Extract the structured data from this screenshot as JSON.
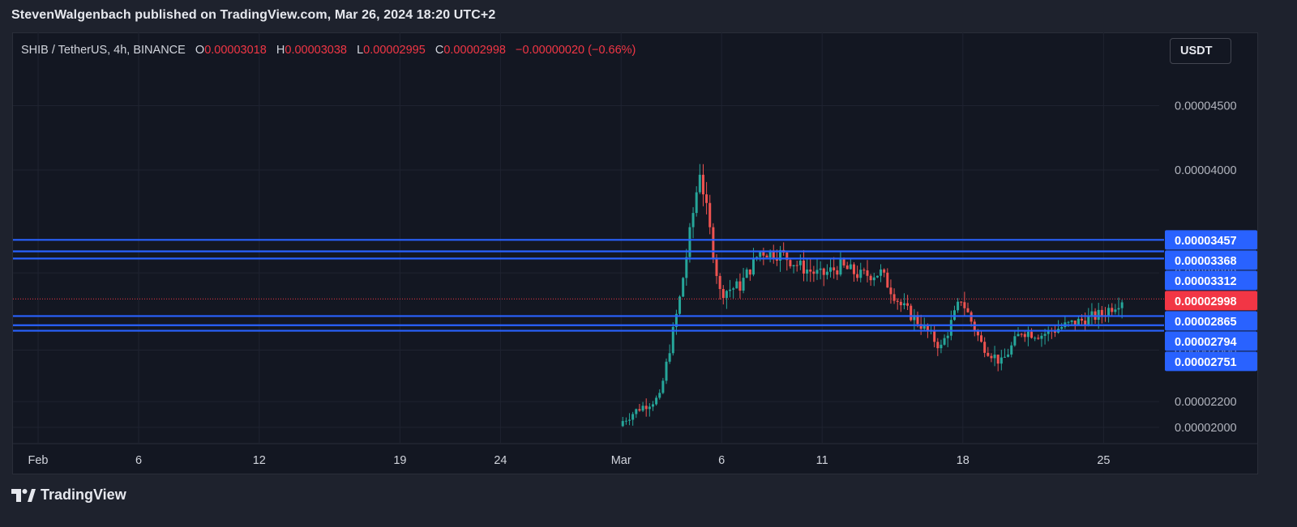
{
  "header": {
    "published_text": "StevenWalgenbach published on TradingView.com, Mar 26, 2024 18:20 UTC+2"
  },
  "legend": {
    "symbol": "SHIB / TetherUS, 4h, BINANCE",
    "open_label": "O",
    "open_value": "0.00003018",
    "high_label": "H",
    "high_value": "0.00003038",
    "low_label": "L",
    "low_value": "0.00002995",
    "close_label": "C",
    "close_value": "0.00002998",
    "change": "−0.00000020 (−0.66%)"
  },
  "currency_button": {
    "label": "USDT"
  },
  "footer": {
    "brand": "TradingView",
    "logo_icon": "tradingview-logo-icon"
  },
  "colors": {
    "up": "#26a69a",
    "down": "#ef5350",
    "level_line": "#2962ff",
    "level_badge": "#2962ff",
    "price_badge": "#f23645"
  },
  "chart_data": {
    "type": "candlestick",
    "interval": "4h",
    "ylim": [
      1.88e-05,
      4.755e-05
    ],
    "y_ticks": [
      "0.00002000",
      "0.00002200",
      "0.00002600",
      "0.00003200",
      "0.00004000",
      "0.00004500"
    ],
    "x_ticks": [
      {
        "label": "Feb",
        "date": "2024-02-01"
      },
      {
        "label": "6",
        "date": "2024-02-06"
      },
      {
        "label": "12",
        "date": "2024-02-12"
      },
      {
        "label": "19",
        "date": "2024-02-19"
      },
      {
        "label": "24",
        "date": "2024-02-24"
      },
      {
        "label": "Mar",
        "date": "2024-03-01"
      },
      {
        "label": "6",
        "date": "2024-03-06"
      },
      {
        "label": "11",
        "date": "2024-03-11"
      },
      {
        "label": "18",
        "date": "2024-03-18"
      },
      {
        "label": "25",
        "date": "2024-03-25"
      }
    ],
    "horizontal_levels": [
      "0.00003457",
      "0.00003368",
      "0.00003312",
      "0.00002865",
      "0.00002794",
      "0.00002751"
    ],
    "last_price": "0.00002998",
    "candles_close": [
      {
        "date": "2024-03-01",
        "close": 2.03e-05
      },
      {
        "date": "2024-03-02",
        "close": 2.15e-05
      },
      {
        "date": "2024-03-03",
        "close": 2.23e-05
      },
      {
        "date": "2024-03-04",
        "close": 3e-05
      },
      {
        "date": "2024-03-05",
        "close": 4e-05
      },
      {
        "date": "2024-03-06",
        "close": 3.05e-05
      },
      {
        "date": "2024-03-07",
        "close": 3.1e-05
      },
      {
        "date": "2024-03-08",
        "close": 3.37e-05
      },
      {
        "date": "2024-03-09",
        "close": 3.35e-05
      },
      {
        "date": "2024-03-10",
        "close": 3.25e-05
      },
      {
        "date": "2024-03-11",
        "close": 3.18e-05
      },
      {
        "date": "2024-03-12",
        "close": 3.25e-05
      },
      {
        "date": "2024-03-13",
        "close": 3.18e-05
      },
      {
        "date": "2024-03-14",
        "close": 3.2e-05
      },
      {
        "date": "2024-03-15",
        "close": 2.95e-05
      },
      {
        "date": "2024-03-16",
        "close": 2.8e-05
      },
      {
        "date": "2024-03-17",
        "close": 2.62e-05
      },
      {
        "date": "2024-03-18",
        "close": 3e-05
      },
      {
        "date": "2024-03-19",
        "close": 2.65e-05
      },
      {
        "date": "2024-03-20",
        "close": 2.5e-05
      },
      {
        "date": "2024-03-21",
        "close": 2.75e-05
      },
      {
        "date": "2024-03-22",
        "close": 2.72e-05
      },
      {
        "date": "2024-03-23",
        "close": 2.78e-05
      },
      {
        "date": "2024-03-24",
        "close": 2.83e-05
      },
      {
        "date": "2024-03-25",
        "close": 2.88e-05
      },
      {
        "date": "2024-03-26",
        "close": 2.998e-05
      }
    ]
  }
}
